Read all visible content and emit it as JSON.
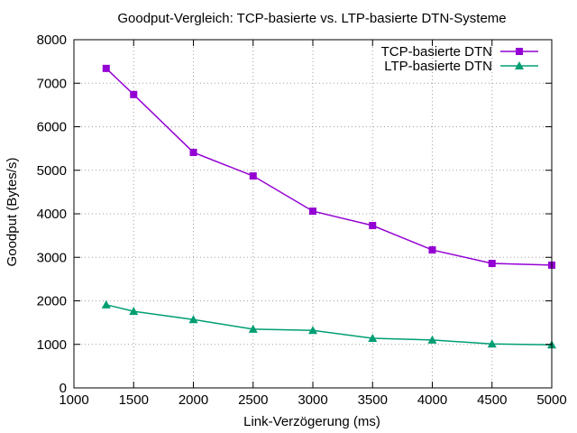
{
  "chart_data": {
    "type": "line",
    "title": "Goodput-Vergleich: TCP-basierte vs. LTP-basierte DTN-Systeme",
    "xlabel": "Link-Verzögerung (ms)",
    "ylabel": "Goodput (Bytes/s)",
    "xlim": [
      1000,
      5000
    ],
    "ylim": [
      0,
      8000
    ],
    "xticks": [
      1000,
      1500,
      2000,
      2500,
      3000,
      3500,
      4000,
      4500,
      5000
    ],
    "yticks": [
      0,
      1000,
      2000,
      3000,
      4000,
      5000,
      6000,
      7000,
      8000
    ],
    "grid": true,
    "legend_position": "top-right",
    "x": [
      1270,
      1500,
      2000,
      2500,
      3000,
      3500,
      4000,
      4500,
      5000
    ],
    "series": [
      {
        "name": "TCP-basierte DTN",
        "color": "#9400d3",
        "marker": "square",
        "values": [
          7340,
          6740,
          5410,
          4870,
          4060,
          3730,
          3170,
          2860,
          2820
        ]
      },
      {
        "name": "LTP-basierte DTN",
        "color": "#009e73",
        "marker": "triangle",
        "values": [
          1910,
          1760,
          1570,
          1350,
          1320,
          1140,
          1100,
          1010,
          990
        ]
      }
    ]
  }
}
